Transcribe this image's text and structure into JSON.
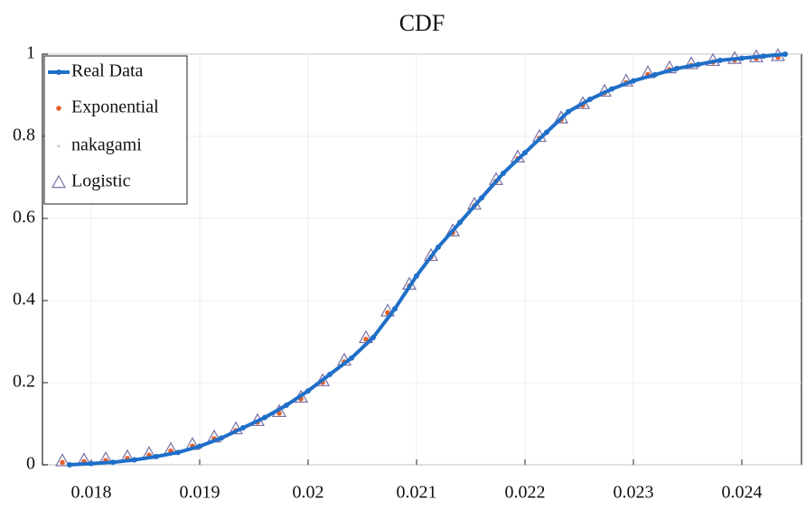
{
  "chart_data": {
    "type": "line",
    "title": "CDF",
    "x": [
      0.0178,
      0.018,
      0.0182,
      0.0184,
      0.0186,
      0.0188,
      0.019,
      0.0192,
      0.0194,
      0.0196,
      0.0198,
      0.02,
      0.0202,
      0.0204,
      0.0206,
      0.0208,
      0.021,
      0.0212,
      0.0214,
      0.0216,
      0.0218,
      0.022,
      0.0222,
      0.0224,
      0.0226,
      0.0228,
      0.023,
      0.0232,
      0.0234,
      0.0236,
      0.0238,
      0.024,
      0.0242,
      0.0244
    ],
    "series": [
      {
        "name": "Real Data",
        "color": "#1f6fc8",
        "values": [
          0.0,
          0.003,
          0.006,
          0.012,
          0.02,
          0.03,
          0.045,
          0.065,
          0.09,
          0.115,
          0.145,
          0.18,
          0.22,
          0.26,
          0.31,
          0.38,
          0.46,
          0.53,
          0.59,
          0.65,
          0.71,
          0.76,
          0.81,
          0.86,
          0.89,
          0.915,
          0.935,
          0.95,
          0.965,
          0.975,
          0.985,
          0.99,
          0.995,
          1.0
        ]
      },
      {
        "name": "Exponential",
        "color": "#e0602a",
        "values": [
          0.01,
          0.012,
          0.015,
          0.02,
          0.028,
          0.038,
          0.05,
          0.068,
          0.088,
          0.108,
          0.13,
          0.165,
          0.205,
          0.255,
          0.31,
          0.375,
          0.44,
          0.51,
          0.57,
          0.635,
          0.695,
          0.75,
          0.8,
          0.845,
          0.88,
          0.91,
          0.935,
          0.955,
          0.967,
          0.977,
          0.985,
          0.99,
          0.994,
          0.997
        ]
      },
      {
        "name": "nakagami",
        "color": "#c8c8c8",
        "values": [
          0.01,
          0.012,
          0.015,
          0.02,
          0.028,
          0.038,
          0.05,
          0.068,
          0.088,
          0.108,
          0.13,
          0.165,
          0.205,
          0.255,
          0.31,
          0.375,
          0.44,
          0.51,
          0.57,
          0.635,
          0.695,
          0.75,
          0.8,
          0.845,
          0.88,
          0.91,
          0.935,
          0.955,
          0.967,
          0.977,
          0.985,
          0.99,
          0.994,
          0.997
        ]
      },
      {
        "name": "Logistic",
        "color": "#7a6fa6",
        "values": [
          0.01,
          0.012,
          0.015,
          0.02,
          0.028,
          0.038,
          0.05,
          0.068,
          0.088,
          0.108,
          0.13,
          0.165,
          0.205,
          0.255,
          0.31,
          0.375,
          0.44,
          0.51,
          0.57,
          0.635,
          0.695,
          0.75,
          0.8,
          0.845,
          0.88,
          0.91,
          0.935,
          0.955,
          0.967,
          0.977,
          0.985,
          0.99,
          0.994,
          0.997
        ]
      }
    ],
    "xlim": [
      0.01755,
      0.02455
    ],
    "xticks": [
      0.018,
      0.019,
      0.02,
      0.021,
      0.022,
      0.023,
      0.024
    ],
    "ylim": [
      0,
      1
    ],
    "yticks": [
      0,
      0.2,
      0.4,
      0.6,
      0.8,
      1
    ],
    "grid": true,
    "legend": "upper-left"
  }
}
